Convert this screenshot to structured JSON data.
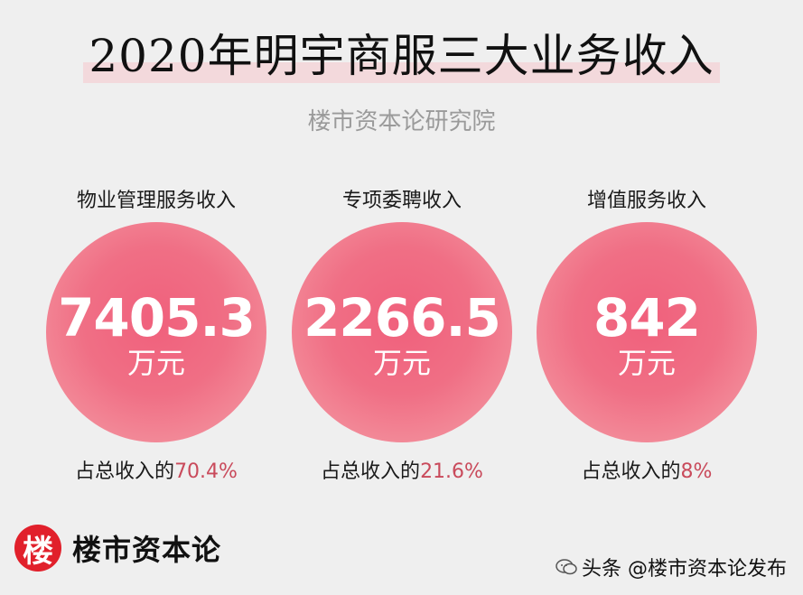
{
  "title": "2020年明宇商服三大业务收入",
  "subtitle": "楼市资本论研究院",
  "columns": [
    {
      "label": "物业管理服务收入",
      "value": "7405.3",
      "unit": "万元",
      "share_prefix": "占总收入的",
      "share_pct": "70.4%"
    },
    {
      "label": "专项委聘收入",
      "value": "2266.5",
      "unit": "万元",
      "share_prefix": "占总收入的",
      "share_pct": "21.6%"
    },
    {
      "label": "增值服务收入",
      "value": "842",
      "unit": "万元",
      "share_prefix": "占总收入的",
      "share_pct": "8%"
    }
  ],
  "brand": {
    "badge": "楼",
    "name": "楼市资本论",
    "badge_color": "#e1202b"
  },
  "watermark": {
    "text": "头条 @楼市资本论发布",
    "icon": "chat-bubble-icon"
  },
  "colors": {
    "circle": "#f06f85",
    "accent_pct": "#c94a5b",
    "title_highlight": "#f3d9dc"
  }
}
